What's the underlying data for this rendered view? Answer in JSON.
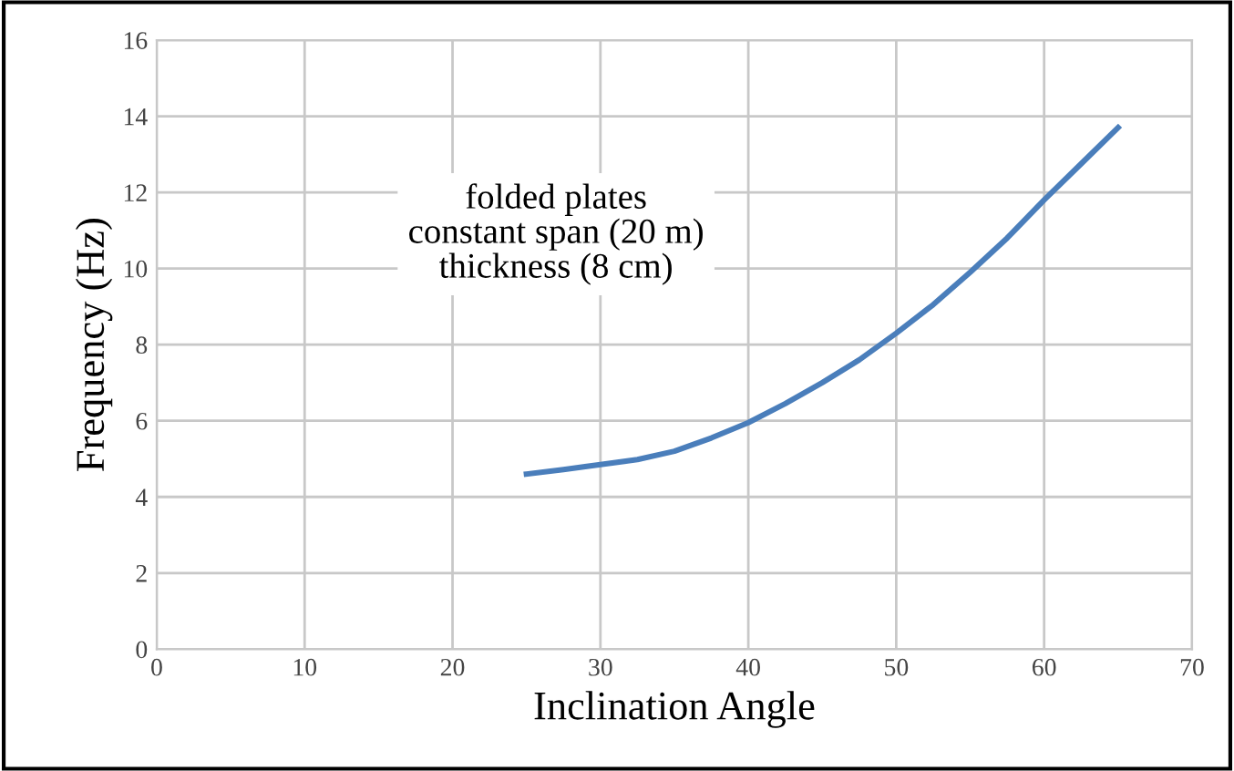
{
  "chart_data": {
    "type": "line",
    "xlabel": "Inclination Angle",
    "ylabel": "Frequency (Hz)",
    "annotations": [
      "folded plates\nconstant span (20 m)\nthickness (8 cm)"
    ],
    "series": [
      {
        "color": "#4a7ebb",
        "x": [
          25,
          27.5,
          30,
          32.5,
          35,
          37.5,
          40,
          42.5,
          45,
          47.5,
          50,
          52.5,
          55,
          57.5,
          60,
          62.5,
          65
        ],
        "values": [
          4.6,
          4.72,
          4.85,
          4.98,
          5.2,
          5.55,
          5.95,
          6.45,
          7.0,
          7.6,
          8.3,
          9.05,
          9.9,
          10.8,
          11.8,
          12.75,
          13.7
        ]
      }
    ],
    "xlim": [
      0,
      70
    ],
    "xticks": [
      0,
      10,
      20,
      30,
      40,
      50,
      60,
      70
    ],
    "ylim": [
      0,
      16
    ],
    "yticks": [
      0,
      2,
      4,
      6,
      8,
      10,
      12,
      14,
      16
    ],
    "grid": true,
    "legend": false,
    "marker": "none",
    "line_style": "solid"
  }
}
